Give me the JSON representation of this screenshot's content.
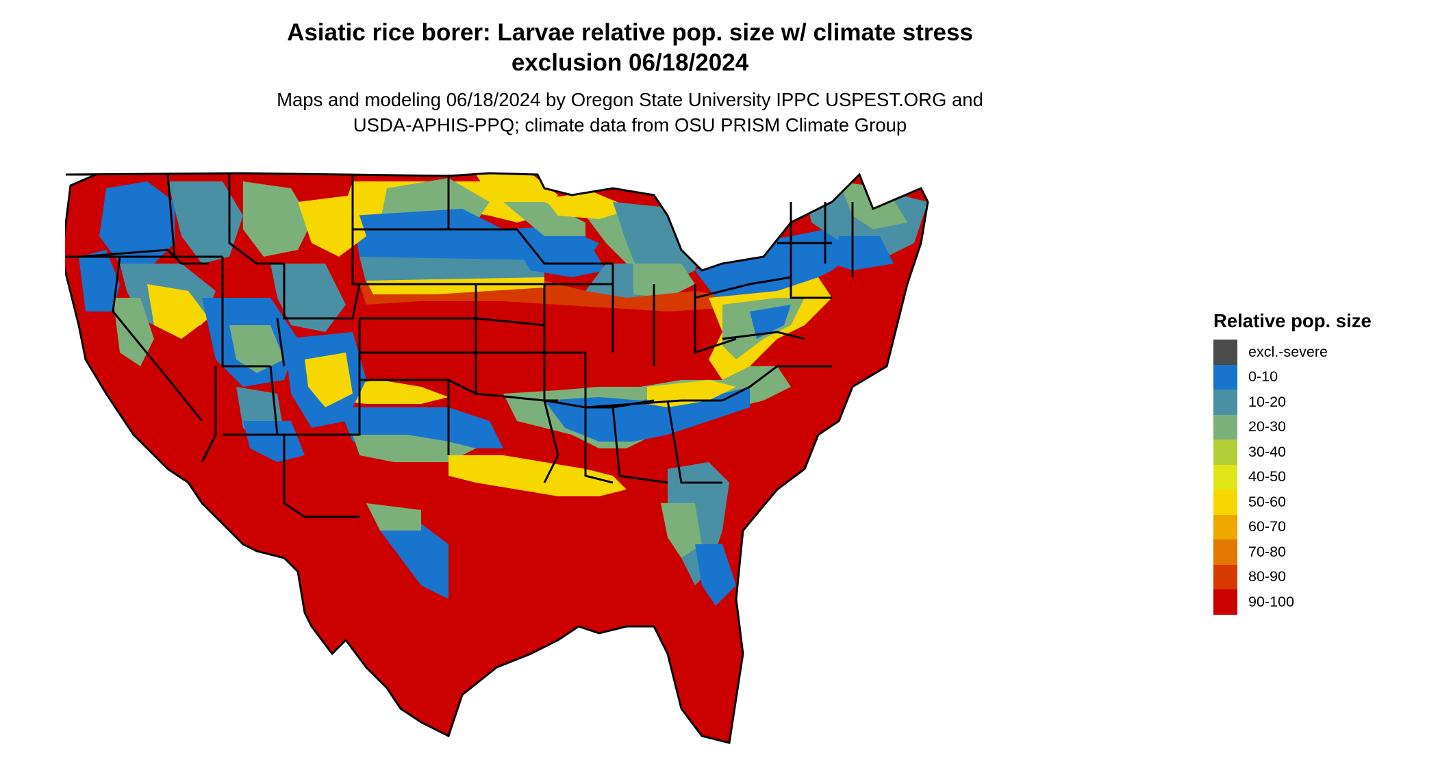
{
  "header": {
    "title_line1": "Asiatic rice borer: Larvae relative pop. size w/ climate stress",
    "title_line2": "exclusion 06/18/2024",
    "subtitle_line1": "Maps and modeling 06/18/2024 by Oregon State University IPPC USPEST.ORG and",
    "subtitle_line2": "USDA-APHIS-PPQ; climate data from OSU PRISM Climate Group"
  },
  "legend": {
    "title": "Relative pop. size",
    "items": [
      {
        "label": "excl.-severe",
        "color": "#4b4b4b"
      },
      {
        "label": "0-10",
        "color": "#1874cd"
      },
      {
        "label": "10-20",
        "color": "#4a90a4"
      },
      {
        "label": "20-30",
        "color": "#7cb07a"
      },
      {
        "label": "30-40",
        "color": "#b2cf3a"
      },
      {
        "label": "40-50",
        "color": "#e1e619"
      },
      {
        "label": "50-60",
        "color": "#f6d800"
      },
      {
        "label": "60-70",
        "color": "#efa800"
      },
      {
        "label": "70-80",
        "color": "#e27800"
      },
      {
        "label": "80-90",
        "color": "#d73a00"
      },
      {
        "label": "90-100",
        "color": "#cd0000"
      }
    ]
  }
}
